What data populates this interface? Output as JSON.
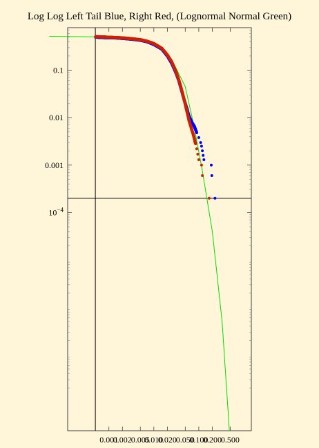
{
  "chart_data": {
    "type": "scatter",
    "title": "Log Log Left Tail Blue, Right Red, (Lognormal Normal Green)",
    "xlabel": "",
    "ylabel": "",
    "x_scale": "log",
    "y_scale": "log",
    "x_ticks": [
      "0.001",
      "0.002",
      "0.005",
      "0.010",
      "0.020",
      "0.050",
      "0.100",
      "0.200",
      "0.500"
    ],
    "y_ticks": [
      "0.1",
      "0.01",
      "0.001",
      "10^-4"
    ],
    "reference_lines": {
      "x": 0.0005,
      "y": 0.0002
    },
    "colors": {
      "left_tail": "#0000ff",
      "right_tail": "#cc2200",
      "lognormal_fit": "#00dd00",
      "background": "#fff5d9"
    },
    "series": [
      {
        "name": "Left Tail",
        "points": [
          [
            0.0005,
            0.5
          ],
          [
            0.0007,
            0.49
          ],
          [
            0.001,
            0.485
          ],
          [
            0.0015,
            0.48
          ],
          [
            0.002,
            0.47
          ],
          [
            0.003,
            0.455
          ],
          [
            0.005,
            0.43
          ],
          [
            0.007,
            0.4
          ],
          [
            0.01,
            0.35
          ],
          [
            0.015,
            0.28
          ],
          [
            0.02,
            0.2
          ],
          [
            0.025,
            0.14
          ],
          [
            0.03,
            0.095
          ],
          [
            0.035,
            0.065
          ],
          [
            0.04,
            0.042
          ],
          [
            0.045,
            0.028
          ],
          [
            0.05,
            0.02
          ],
          [
            0.055,
            0.015
          ],
          [
            0.06,
            0.011
          ],
          [
            0.07,
            0.008
          ],
          [
            0.08,
            0.0065
          ],
          [
            0.09,
            0.0048
          ],
          [
            0.1,
            0.0038
          ],
          [
            0.11,
            0.003
          ],
          [
            0.115,
            0.0025
          ],
          [
            0.12,
            0.002
          ],
          [
            0.125,
            0.0016
          ],
          [
            0.13,
            0.0013
          ],
          [
            0.19,
            0.001
          ],
          [
            0.195,
            0.0006
          ],
          [
            0.23,
            0.0002
          ]
        ]
      },
      {
        "name": "Right Tail",
        "points": [
          [
            0.0005,
            0.51
          ],
          [
            0.0007,
            0.505
          ],
          [
            0.001,
            0.495
          ],
          [
            0.0015,
            0.488
          ],
          [
            0.002,
            0.48
          ],
          [
            0.003,
            0.465
          ],
          [
            0.005,
            0.44
          ],
          [
            0.007,
            0.41
          ],
          [
            0.01,
            0.365
          ],
          [
            0.015,
            0.29
          ],
          [
            0.02,
            0.21
          ],
          [
            0.025,
            0.15
          ],
          [
            0.03,
            0.1
          ],
          [
            0.035,
            0.068
          ],
          [
            0.04,
            0.044
          ],
          [
            0.045,
            0.029
          ],
          [
            0.05,
            0.019
          ],
          [
            0.055,
            0.013
          ],
          [
            0.06,
            0.009
          ],
          [
            0.065,
            0.007
          ],
          [
            0.07,
            0.0055
          ],
          [
            0.075,
            0.0045
          ],
          [
            0.08,
            0.0035
          ],
          [
            0.085,
            0.0028
          ],
          [
            0.09,
            0.0022
          ],
          [
            0.095,
            0.0017
          ],
          [
            0.1,
            0.0013
          ],
          [
            0.115,
            0.001
          ],
          [
            0.12,
            0.0006
          ],
          [
            0.17,
            0.0002
          ]
        ]
      },
      {
        "name": "Lognormal Normal",
        "line": [
          [
            4.7e-05,
            0.52
          ],
          [
            0.0005,
            0.505
          ],
          [
            0.003,
            0.46
          ],
          [
            0.01,
            0.36
          ],
          [
            0.025,
            0.17
          ],
          [
            0.05,
            0.045
          ],
          [
            0.08,
            0.006
          ],
          [
            0.12,
            0.00075
          ],
          [
            0.2,
            4e-05
          ],
          [
            0.33,
            5e-07
          ],
          [
            0.48,
            2.5e-09
          ]
        ]
      }
    ]
  }
}
